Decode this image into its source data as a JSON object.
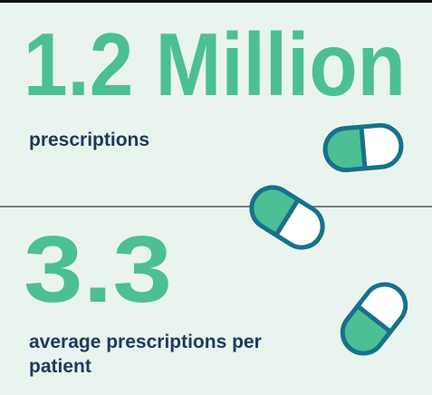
{
  "stats": [
    {
      "value": "1.2 Million",
      "label": "prescriptions"
    },
    {
      "value": "3.3",
      "label": "average prescriptions per patient"
    }
  ]
}
